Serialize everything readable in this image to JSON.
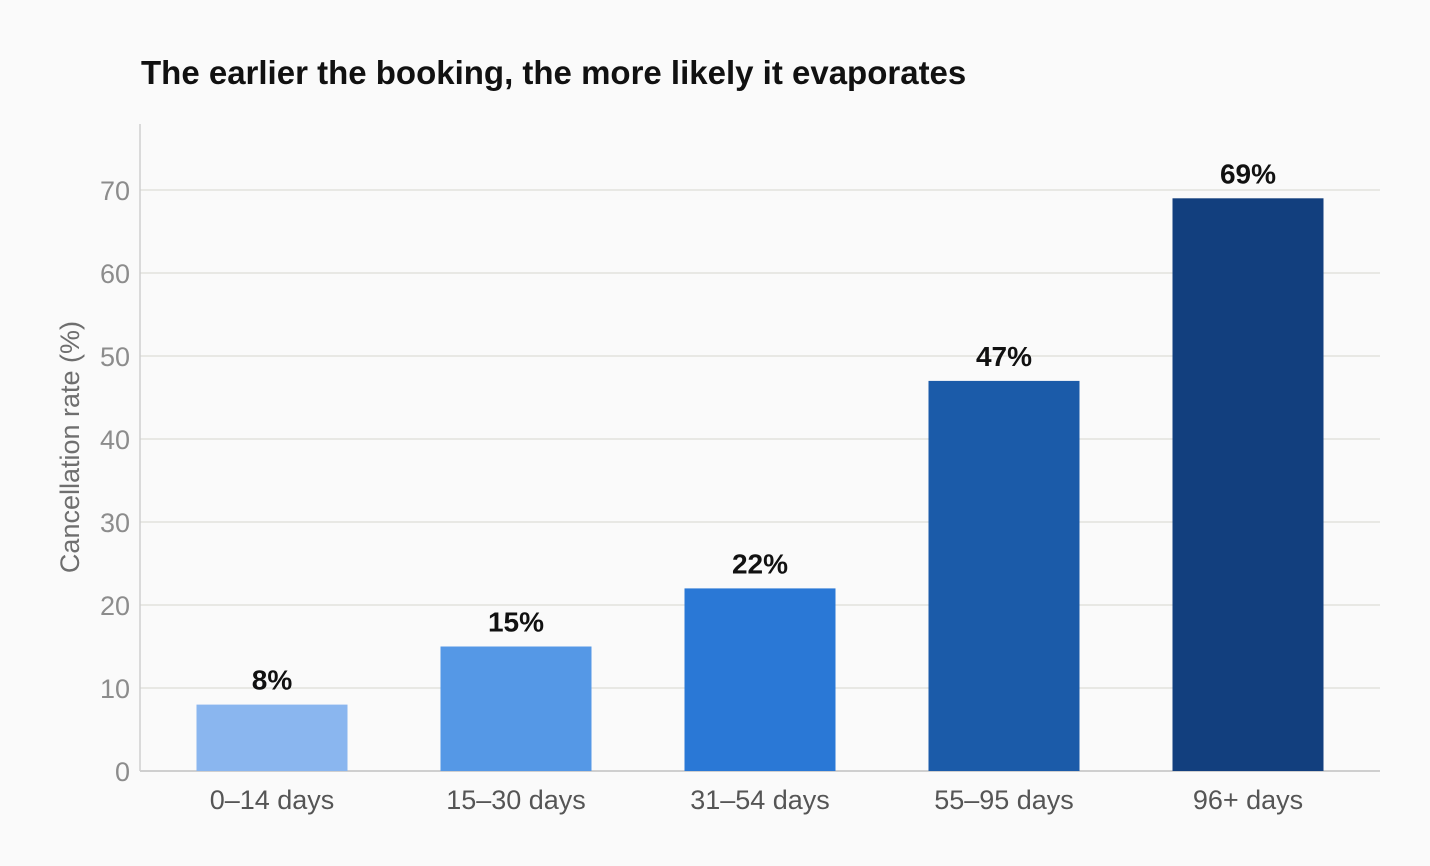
{
  "chart_data": {
    "type": "bar",
    "title": "The earlier the booking, the more likely it evaporates",
    "xlabel": "",
    "ylabel": "Cancellation rate (%)",
    "categories": [
      "0–14 days",
      "15–30 days",
      "31–54 days",
      "55–95 days",
      "96+ days"
    ],
    "values": [
      8,
      15,
      22,
      47,
      69
    ],
    "value_labels": [
      "8%",
      "15%",
      "22%",
      "47%",
      "69%"
    ],
    "colors": [
      "#8ab6ef",
      "#5598e6",
      "#2a78d6",
      "#1b5ba9",
      "#123f7e"
    ],
    "yticks": [
      0,
      10,
      20,
      30,
      40,
      50,
      60,
      70
    ],
    "ylim": [
      0,
      78
    ],
    "grid": true,
    "legend": "none"
  }
}
